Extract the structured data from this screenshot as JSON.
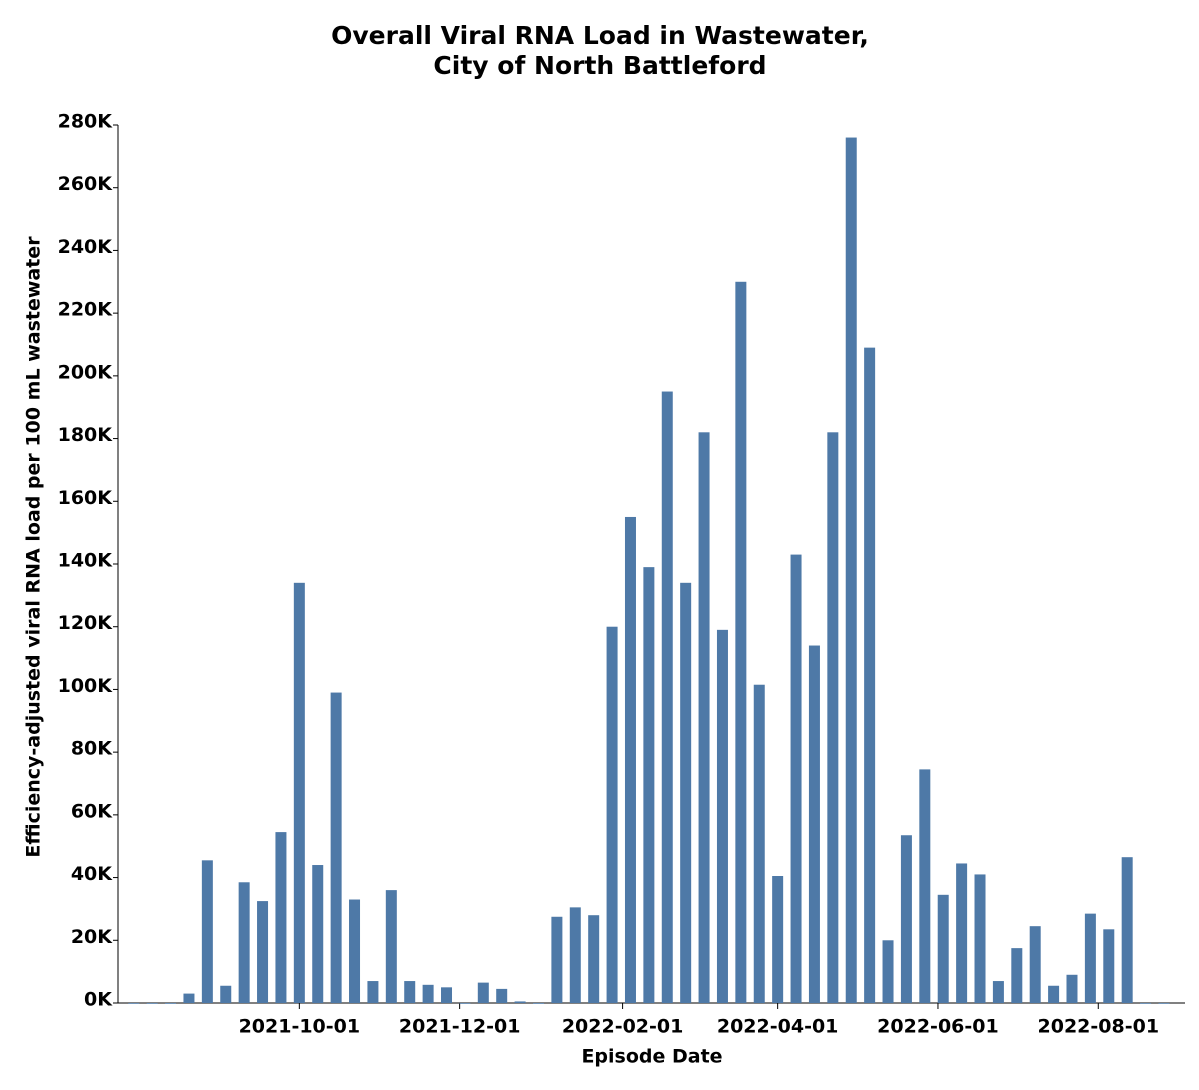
{
  "chart_data": {
    "type": "bar",
    "title": [
      "Overall Viral RNA Load in Wastewater,",
      "City of North Battleford"
    ],
    "x_label": "Episode Date",
    "y_label": "Efficiency-adjusted viral RNA load per 100 mL wastewater",
    "color": "#4e79a7",
    "x": [
      "2021-07-30",
      "2021-08-06",
      "2021-08-13",
      "2021-08-20",
      "2021-08-27",
      "2021-09-03",
      "2021-09-10",
      "2021-09-17",
      "2021-09-24",
      "2021-10-01",
      "2021-10-08",
      "2021-10-15",
      "2021-10-22",
      "2021-10-29",
      "2021-11-05",
      "2021-11-12",
      "2021-11-19",
      "2021-11-26",
      "2021-12-03",
      "2021-12-10",
      "2021-12-17",
      "2021-12-24",
      "2021-12-31",
      "2022-01-07",
      "2022-01-14",
      "2022-01-21",
      "2022-01-28",
      "2022-02-04",
      "2022-02-11",
      "2022-02-18",
      "2022-02-25",
      "2022-03-04",
      "2022-03-11",
      "2022-03-18",
      "2022-03-25",
      "2022-04-01",
      "2022-04-08",
      "2022-04-15",
      "2022-04-22",
      "2022-04-29",
      "2022-05-06",
      "2022-05-13",
      "2022-05-20",
      "2022-05-27",
      "2022-06-03",
      "2022-06-10",
      "2022-06-17",
      "2022-06-24",
      "2022-07-01",
      "2022-07-08",
      "2022-07-15",
      "2022-07-22",
      "2022-07-29",
      "2022-08-05",
      "2022-08-12",
      "2022-08-19",
      "2022-08-26"
    ],
    "values": [
      0,
      0,
      0,
      3000,
      45500,
      5500,
      38500,
      32500,
      54500,
      134000,
      44000,
      99000,
      33000,
      7000,
      36000,
      7000,
      5800,
      5000,
      0,
      6500,
      4500,
      500,
      0,
      27500,
      30500,
      28000,
      120000,
      155000,
      139000,
      195000,
      134000,
      182000,
      119000,
      230000,
      101500,
      40500,
      143000,
      114000,
      182000,
      276000,
      209000,
      20000,
      53500,
      74500,
      34500,
      44500,
      41000,
      7000,
      17500,
      24500,
      5500,
      9000,
      28500,
      23500,
      46500,
      0,
      0
    ],
    "xlim": [
      "2021-07-24",
      "2022-09-03"
    ],
    "xticks": [
      "2021-10-01",
      "2021-12-01",
      "2022-02-01",
      "2022-04-01",
      "2022-06-01",
      "2022-08-01"
    ],
    "ylim": [
      0,
      280000
    ],
    "yticks": [
      {
        "value": 0,
        "label": "0K"
      },
      {
        "value": 20000,
        "label": "20K"
      },
      {
        "value": 40000,
        "label": "40K"
      },
      {
        "value": 60000,
        "label": "60K"
      },
      {
        "value": 80000,
        "label": "80K"
      },
      {
        "value": 100000,
        "label": "100K"
      },
      {
        "value": 120000,
        "label": "120K"
      },
      {
        "value": 140000,
        "label": "140K"
      },
      {
        "value": 160000,
        "label": "160K"
      },
      {
        "value": 180000,
        "label": "180K"
      },
      {
        "value": 200000,
        "label": "200K"
      },
      {
        "value": 220000,
        "label": "220K"
      },
      {
        "value": 240000,
        "label": "240K"
      },
      {
        "value": 260000,
        "label": "260K"
      },
      {
        "value": 280000,
        "label": "280K"
      }
    ],
    "grid": false
  }
}
